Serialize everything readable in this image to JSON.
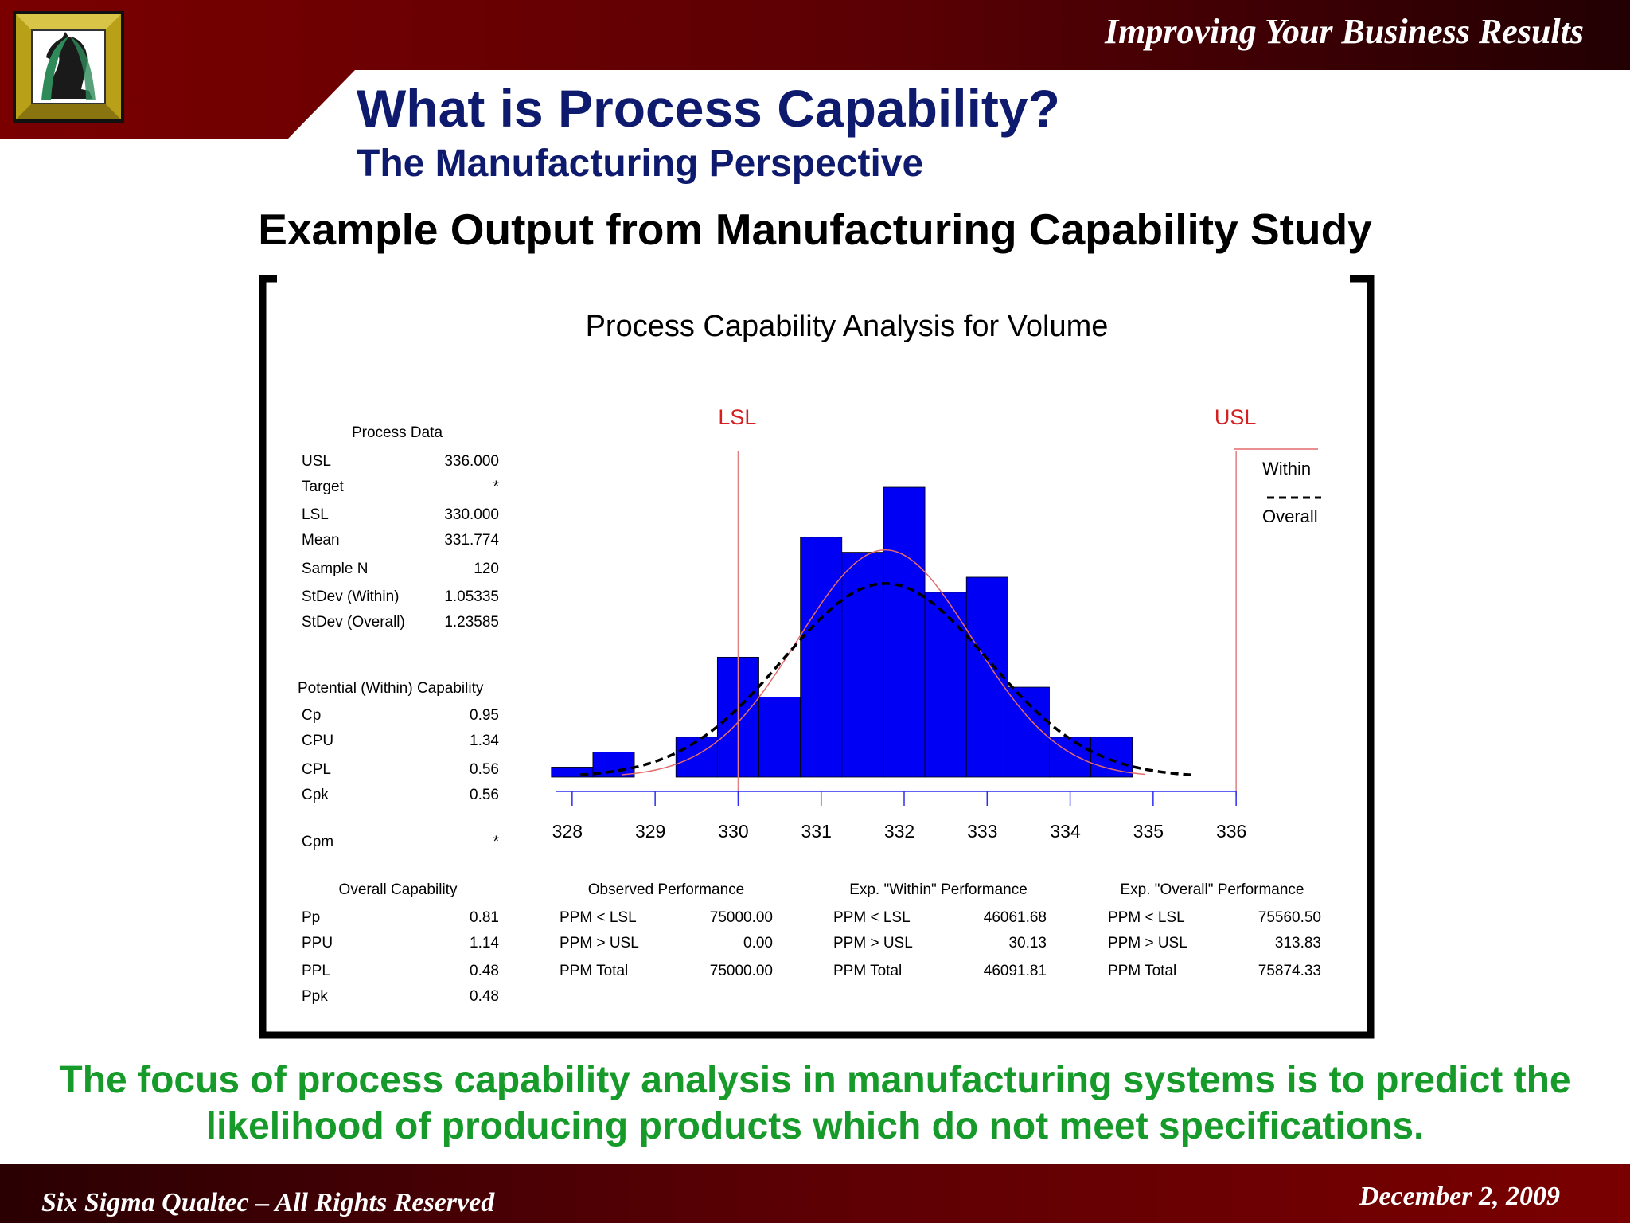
{
  "header": {
    "tagline": "Improving Your Business Results",
    "title": "What is Process Capability?",
    "subtitle": "The Manufacturing Perspective",
    "logo_icon": "knight-chess-piece-icon"
  },
  "section_heading": "Example Output from Manufacturing Capability Study",
  "chart_data": {
    "type": "bar",
    "title": "Process Capability Analysis for Volume",
    "xlabel": "",
    "ylabel": "",
    "xlim": [
      327.8,
      336.2
    ],
    "ylim": [
      0,
      29
    ],
    "x_ticks": [
      328,
      329,
      330,
      331,
      332,
      333,
      334,
      335,
      336
    ],
    "bins": {
      "width": 0.5,
      "left_edges": [
        327.75,
        328.25,
        328.75,
        329.25,
        329.75,
        330.25,
        330.75,
        331.25,
        331.75,
        332.25,
        332.75,
        333.25,
        333.75,
        334.25
      ],
      "counts": [
        1,
        2.5,
        0,
        4,
        12,
        8,
        24,
        22.5,
        29,
        18.5,
        20,
        9,
        4,
        4
      ]
    },
    "spec_limits": {
      "LSL": 330,
      "USL": 336,
      "labels": [
        "LSL",
        "USL"
      ]
    },
    "series": [
      {
        "name": "Within",
        "distribution": "normal",
        "mean": 331.774,
        "stdev": 1.05335
      },
      {
        "name": "Overall",
        "distribution": "normal",
        "mean": 331.774,
        "stdev": 1.23585
      }
    ],
    "colors": {
      "bars": "#0000f5",
      "within": "#e46a6a",
      "overall": "#000000",
      "spec": "#e08080",
      "spec_label": "#d42020"
    },
    "legend": {
      "placement": "top-right",
      "entries": [
        "Within",
        "Overall"
      ]
    },
    "grid": false,
    "process_data": {
      "heading": "Process Data",
      "rows": [
        {
          "label": "USL",
          "value": "336.000"
        },
        {
          "label": "Target",
          "value": "*"
        },
        {
          "label": "LSL",
          "value": "330.000"
        },
        {
          "label": "Mean",
          "value": "331.774"
        },
        {
          "label": "Sample N",
          "value": "120"
        },
        {
          "label": "StDev (Within)",
          "value": "1.05335"
        },
        {
          "label": "StDev (Overall)",
          "value": "1.23585"
        }
      ]
    },
    "potential_capability": {
      "heading": "Potential (Within) Capability",
      "rows": [
        {
          "label": "Cp",
          "value": "0.95"
        },
        {
          "label": "CPU",
          "value": "1.34"
        },
        {
          "label": "CPL",
          "value": "0.56"
        },
        {
          "label": "Cpk",
          "value": "0.56"
        },
        {
          "label": "Cpm",
          "value": "*"
        }
      ]
    },
    "overall_capability": {
      "heading": "Overall Capability",
      "rows": [
        {
          "label": "Pp",
          "value": "0.81"
        },
        {
          "label": "PPU",
          "value": "1.14"
        },
        {
          "label": "PPL",
          "value": "0.48"
        },
        {
          "label": "Ppk",
          "value": "0.48"
        }
      ]
    },
    "observed_performance": {
      "heading": "Observed Performance",
      "rows": [
        {
          "label": "PPM < LSL",
          "value": "75000.00"
        },
        {
          "label": "PPM > USL",
          "value": "0.00"
        },
        {
          "label": "PPM Total",
          "value": "75000.00"
        }
      ]
    },
    "expected_within_performance": {
      "heading": "Exp. \"Within\" Performance",
      "rows": [
        {
          "label": "PPM < LSL",
          "value": "46061.68"
        },
        {
          "label": "PPM > USL",
          "value": "30.13"
        },
        {
          "label": "PPM Total",
          "value": "46091.81"
        }
      ]
    },
    "expected_overall_performance": {
      "heading": "Exp. \"Overall\" Performance",
      "rows": [
        {
          "label": "PPM < LSL",
          "value": "75560.50"
        },
        {
          "label": "PPM > USL",
          "value": "313.83"
        },
        {
          "label": "PPM Total",
          "value": "75874.33"
        }
      ]
    }
  },
  "footnote": "The focus of process capability analysis in manufacturing systems is to predict the likelihood of producing products which do not meet specifications.",
  "footer": {
    "left": "Six Sigma Qualtec – All Rights Reserved",
    "right": "December 2, 2009"
  }
}
